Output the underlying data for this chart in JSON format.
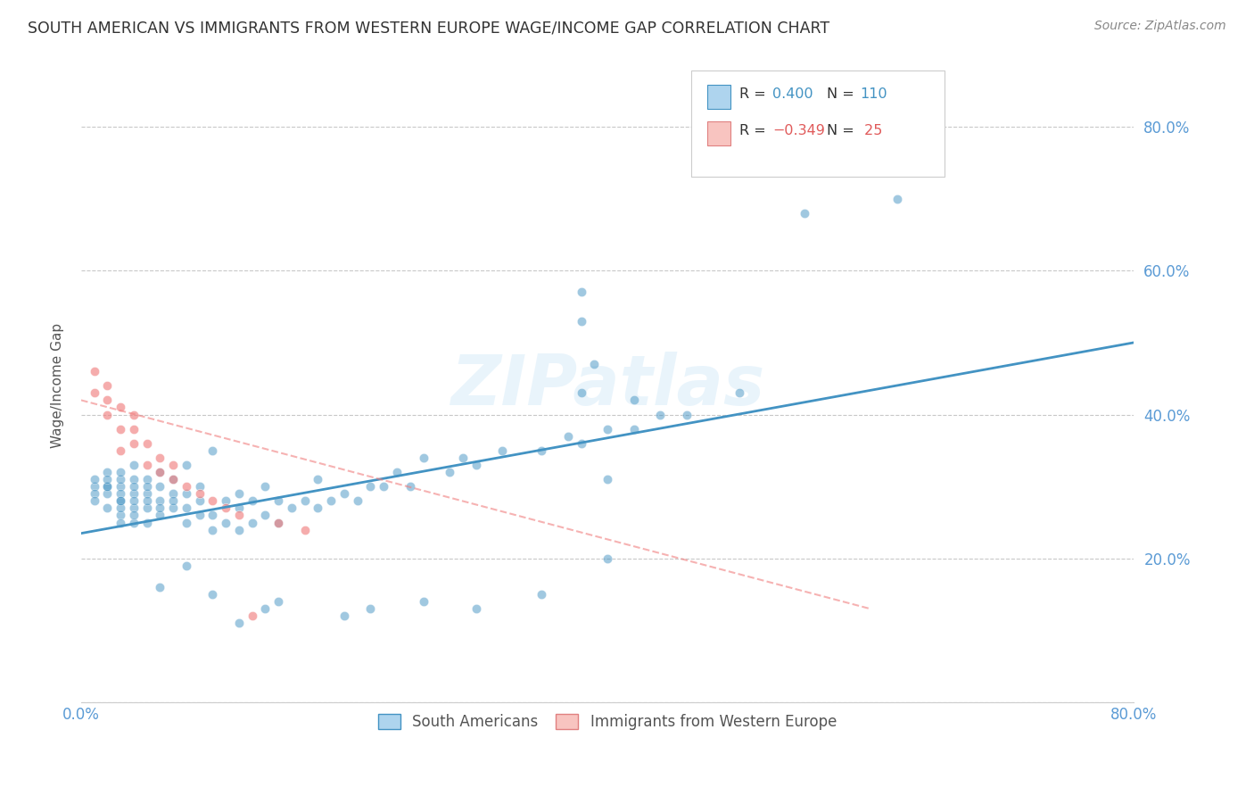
{
  "title": "SOUTH AMERICAN VS IMMIGRANTS FROM WESTERN EUROPE WAGE/INCOME GAP CORRELATION CHART",
  "source": "Source: ZipAtlas.com",
  "ylabel": "Wage/Income Gap",
  "watermark": "ZIPatlas",
  "legend_labels": [
    "South Americans",
    "Immigrants from Western Europe"
  ],
  "blue_color": "#4393c3",
  "pink_color": "#f08080",
  "axis_color": "#5b9bd5",
  "grid_color": "#c8c8c8",
  "title_color": "#333333",
  "blue_scatter_x": [
    0.01,
    0.01,
    0.01,
    0.01,
    0.02,
    0.02,
    0.02,
    0.02,
    0.02,
    0.02,
    0.03,
    0.03,
    0.03,
    0.03,
    0.03,
    0.03,
    0.03,
    0.03,
    0.03,
    0.04,
    0.04,
    0.04,
    0.04,
    0.04,
    0.04,
    0.04,
    0.04,
    0.05,
    0.05,
    0.05,
    0.05,
    0.05,
    0.05,
    0.06,
    0.06,
    0.06,
    0.06,
    0.06,
    0.07,
    0.07,
    0.07,
    0.07,
    0.08,
    0.08,
    0.08,
    0.08,
    0.09,
    0.09,
    0.09,
    0.1,
    0.1,
    0.1,
    0.11,
    0.11,
    0.12,
    0.12,
    0.12,
    0.13,
    0.13,
    0.14,
    0.14,
    0.15,
    0.15,
    0.16,
    0.17,
    0.18,
    0.18,
    0.19,
    0.2,
    0.21,
    0.22,
    0.23,
    0.24,
    0.25,
    0.26,
    0.28,
    0.29,
    0.3,
    0.32,
    0.35,
    0.37,
    0.38,
    0.4,
    0.42,
    0.44,
    0.46,
    0.5,
    0.38,
    0.39,
    0.55,
    0.62,
    0.38,
    0.38,
    0.4,
    0.08,
    0.1,
    0.12,
    0.15,
    0.06,
    0.14,
    0.2,
    0.22,
    0.26,
    0.3,
    0.35,
    0.4,
    0.42
  ],
  "blue_scatter_y": [
    0.3,
    0.29,
    0.31,
    0.28,
    0.3,
    0.32,
    0.27,
    0.29,
    0.3,
    0.31,
    0.26,
    0.28,
    0.3,
    0.27,
    0.29,
    0.31,
    0.25,
    0.32,
    0.28,
    0.27,
    0.29,
    0.31,
    0.25,
    0.28,
    0.3,
    0.33,
    0.26,
    0.27,
    0.29,
    0.31,
    0.25,
    0.28,
    0.3,
    0.26,
    0.28,
    0.3,
    0.32,
    0.27,
    0.27,
    0.29,
    0.31,
    0.28,
    0.25,
    0.27,
    0.29,
    0.33,
    0.26,
    0.28,
    0.3,
    0.24,
    0.26,
    0.35,
    0.25,
    0.28,
    0.24,
    0.27,
    0.29,
    0.25,
    0.28,
    0.26,
    0.3,
    0.25,
    0.28,
    0.27,
    0.28,
    0.27,
    0.31,
    0.28,
    0.29,
    0.28,
    0.3,
    0.3,
    0.32,
    0.3,
    0.34,
    0.32,
    0.34,
    0.33,
    0.35,
    0.35,
    0.37,
    0.36,
    0.38,
    0.38,
    0.4,
    0.4,
    0.43,
    0.43,
    0.47,
    0.68,
    0.7,
    0.53,
    0.57,
    0.2,
    0.19,
    0.15,
    0.11,
    0.14,
    0.16,
    0.13,
    0.12,
    0.13,
    0.14,
    0.13,
    0.15,
    0.31,
    0.42
  ],
  "pink_scatter_x": [
    0.01,
    0.01,
    0.02,
    0.02,
    0.02,
    0.03,
    0.03,
    0.03,
    0.04,
    0.04,
    0.04,
    0.05,
    0.05,
    0.06,
    0.06,
    0.07,
    0.07,
    0.08,
    0.09,
    0.1,
    0.11,
    0.12,
    0.13,
    0.15,
    0.17
  ],
  "pink_scatter_y": [
    0.43,
    0.46,
    0.4,
    0.42,
    0.44,
    0.35,
    0.38,
    0.41,
    0.36,
    0.38,
    0.4,
    0.33,
    0.36,
    0.32,
    0.34,
    0.31,
    0.33,
    0.3,
    0.29,
    0.28,
    0.27,
    0.26,
    0.12,
    0.25,
    0.24
  ],
  "blue_line_x": [
    0.0,
    0.8
  ],
  "blue_line_y": [
    0.235,
    0.5
  ],
  "pink_line_x": [
    0.0,
    0.6
  ],
  "pink_line_y": [
    0.42,
    0.13
  ],
  "xlim": [
    0.0,
    0.8
  ],
  "ylim": [
    0.0,
    0.88
  ],
  "xticks": [
    0.0,
    0.1,
    0.2,
    0.3,
    0.4,
    0.5,
    0.6,
    0.7,
    0.8
  ],
  "yticks": [
    0.0,
    0.2,
    0.4,
    0.6,
    0.8
  ],
  "background_color": "#ffffff"
}
